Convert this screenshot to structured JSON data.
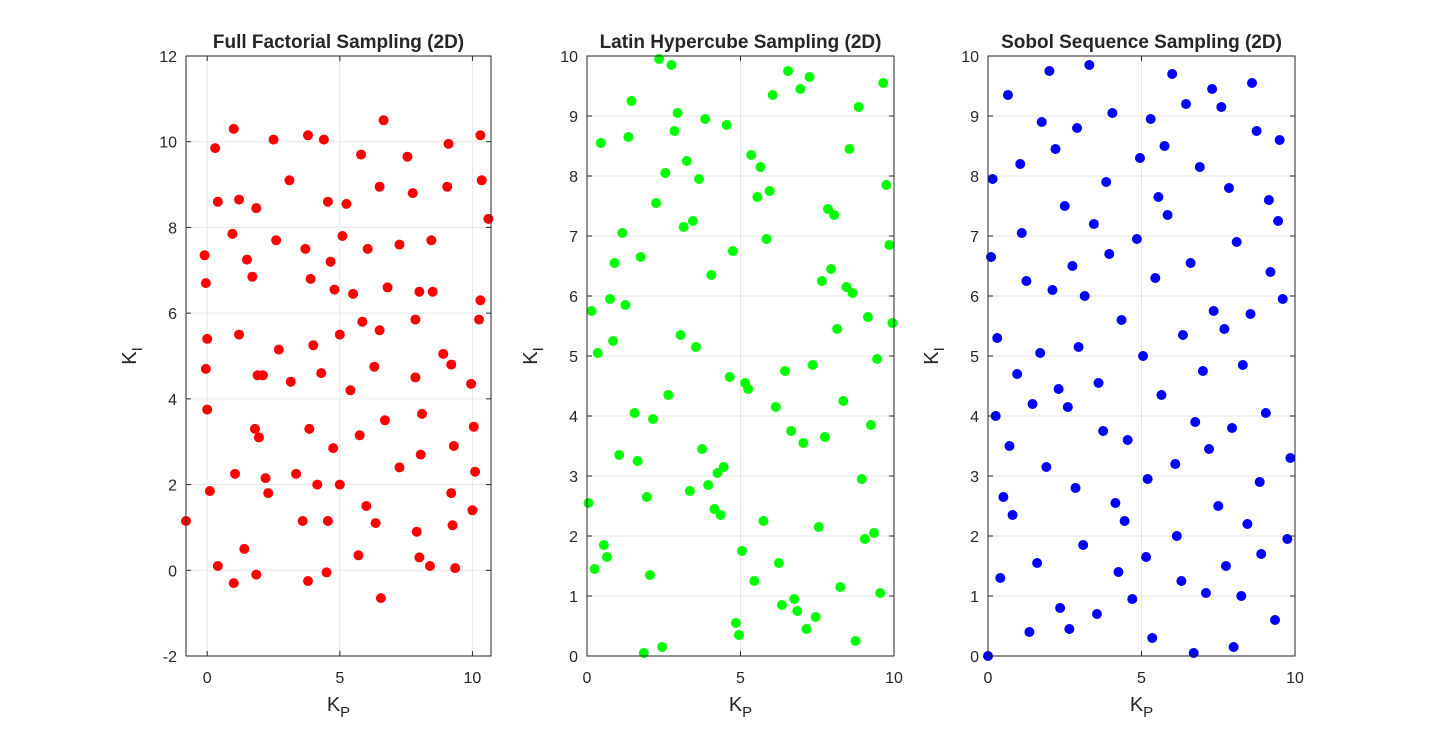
{
  "figure": {
    "background": "#ffffff"
  },
  "chart_data": [
    {
      "type": "scatter",
      "title": "Full Factorial Sampling (2D)",
      "xlabel": "K",
      "xlabel_sub": "P",
      "ylabel": "K",
      "ylabel_sub": "I",
      "xlim": [
        -0.8,
        10.7
      ],
      "ylim": [
        -2,
        12
      ],
      "xticks": [
        0,
        5,
        10
      ],
      "yticks": [
        -2,
        0,
        2,
        4,
        6,
        8,
        10,
        12
      ],
      "grid": true,
      "color": "#ff0000",
      "points": [
        [
          -0.8,
          1.15
        ],
        [
          -0.1,
          7.35
        ],
        [
          -0.05,
          6.7
        ],
        [
          0.0,
          5.4
        ],
        [
          -0.05,
          4.7
        ],
        [
          0.0,
          3.75
        ],
        [
          0.1,
          1.85
        ],
        [
          0.3,
          9.85
        ],
        [
          0.4,
          8.6
        ],
        [
          0.4,
          0.1
        ],
        [
          0.95,
          7.85
        ],
        [
          1.0,
          10.3
        ],
        [
          1.05,
          2.25
        ],
        [
          1.0,
          -0.3
        ],
        [
          1.2,
          8.65
        ],
        [
          1.2,
          5.5
        ],
        [
          1.4,
          0.5
        ],
        [
          1.5,
          7.25
        ],
        [
          1.7,
          6.85
        ],
        [
          1.8,
          3.3
        ],
        [
          1.85,
          8.45
        ],
        [
          1.9,
          4.55
        ],
        [
          1.85,
          -0.1
        ],
        [
          1.95,
          3.1
        ],
        [
          2.1,
          4.55
        ],
        [
          2.2,
          2.15
        ],
        [
          2.3,
          1.8
        ],
        [
          2.5,
          10.05
        ],
        [
          2.6,
          7.7
        ],
        [
          2.7,
          5.15
        ],
        [
          3.1,
          9.1
        ],
        [
          3.15,
          4.4
        ],
        [
          3.35,
          2.25
        ],
        [
          3.6,
          1.15
        ],
        [
          3.7,
          7.5
        ],
        [
          3.8,
          10.15
        ],
        [
          3.8,
          -0.25
        ],
        [
          3.85,
          3.3
        ],
        [
          3.9,
          6.8
        ],
        [
          4.0,
          5.25
        ],
        [
          4.15,
          2.0
        ],
        [
          4.3,
          4.6
        ],
        [
          4.4,
          10.05
        ],
        [
          4.5,
          -0.05
        ],
        [
          4.55,
          1.15
        ],
        [
          4.55,
          8.6
        ],
        [
          4.65,
          7.2
        ],
        [
          4.75,
          2.85
        ],
        [
          4.8,
          6.55
        ],
        [
          5.0,
          5.5
        ],
        [
          5.0,
          2.0
        ],
        [
          5.1,
          7.8
        ],
        [
          5.25,
          8.55
        ],
        [
          5.4,
          4.2
        ],
        [
          5.5,
          6.45
        ],
        [
          5.7,
          0.35
        ],
        [
          5.75,
          3.15
        ],
        [
          5.8,
          9.7
        ],
        [
          5.85,
          5.8
        ],
        [
          6.0,
          1.5
        ],
        [
          6.05,
          7.5
        ],
        [
          6.3,
          4.75
        ],
        [
          6.35,
          1.1
        ],
        [
          6.5,
          8.95
        ],
        [
          6.5,
          5.6
        ],
        [
          6.55,
          -0.65
        ],
        [
          6.65,
          10.5
        ],
        [
          6.7,
          3.5
        ],
        [
          6.8,
          6.6
        ],
        [
          7.25,
          7.6
        ],
        [
          7.25,
          2.4
        ],
        [
          7.55,
          9.65
        ],
        [
          7.75,
          8.8
        ],
        [
          7.85,
          4.5
        ],
        [
          7.85,
          5.85
        ],
        [
          7.9,
          0.9
        ],
        [
          8.0,
          6.5
        ],
        [
          8.0,
          0.3
        ],
        [
          8.05,
          2.7
        ],
        [
          8.1,
          3.65
        ],
        [
          8.4,
          0.1
        ],
        [
          8.45,
          7.7
        ],
        [
          8.5,
          6.5
        ],
        [
          8.9,
          5.05
        ],
        [
          9.05,
          8.95
        ],
        [
          9.1,
          9.95
        ],
        [
          9.2,
          1.8
        ],
        [
          9.2,
          4.8
        ],
        [
          9.25,
          1.05
        ],
        [
          9.3,
          2.9
        ],
        [
          9.35,
          0.05
        ],
        [
          9.95,
          4.35
        ],
        [
          10.0,
          1.4
        ],
        [
          10.05,
          3.35
        ],
        [
          10.1,
          2.3
        ],
        [
          10.25,
          5.85
        ],
        [
          10.3,
          10.15
        ],
        [
          10.3,
          6.3
        ],
        [
          10.35,
          9.1
        ],
        [
          10.6,
          8.2
        ]
      ]
    },
    {
      "type": "scatter",
      "title": "Latin Hypercube Sampling (2D)",
      "xlabel": "K",
      "xlabel_sub": "P",
      "ylabel": "K",
      "ylabel_sub": "I",
      "xlim": [
        0,
        10
      ],
      "ylim": [
        0,
        10
      ],
      "xticks": [
        0,
        5,
        10
      ],
      "yticks": [
        0,
        1,
        2,
        3,
        4,
        5,
        6,
        7,
        8,
        9,
        10
      ],
      "grid": true,
      "color": "#00ff00",
      "points": [
        [
          0.05,
          2.55
        ],
        [
          0.15,
          5.75
        ],
        [
          0.25,
          1.45
        ],
        [
          0.35,
          5.05
        ],
        [
          0.45,
          8.55
        ],
        [
          0.55,
          1.85
        ],
        [
          0.65,
          1.65
        ],
        [
          0.75,
          5.95
        ],
        [
          0.85,
          5.25
        ],
        [
          0.9,
          6.55
        ],
        [
          1.05,
          3.35
        ],
        [
          1.15,
          7.05
        ],
        [
          1.25,
          5.85
        ],
        [
          1.35,
          8.65
        ],
        [
          1.45,
          9.25
        ],
        [
          1.55,
          4.05
        ],
        [
          1.65,
          3.25
        ],
        [
          1.75,
          6.65
        ],
        [
          1.85,
          0.05
        ],
        [
          1.95,
          2.65
        ],
        [
          2.05,
          1.35
        ],
        [
          2.15,
          3.95
        ],
        [
          2.25,
          7.55
        ],
        [
          2.35,
          9.95
        ],
        [
          2.45,
          0.15
        ],
        [
          2.55,
          8.05
        ],
        [
          2.65,
          4.35
        ],
        [
          2.75,
          9.85
        ],
        [
          2.85,
          8.75
        ],
        [
          2.95,
          9.05
        ],
        [
          3.05,
          5.35
        ],
        [
          3.15,
          7.15
        ],
        [
          3.25,
          8.25
        ],
        [
          3.35,
          2.75
        ],
        [
          3.45,
          7.25
        ],
        [
          3.55,
          5.15
        ],
        [
          3.65,
          7.95
        ],
        [
          3.75,
          3.45
        ],
        [
          3.85,
          8.95
        ],
        [
          3.95,
          2.85
        ],
        [
          4.05,
          6.35
        ],
        [
          4.15,
          2.45
        ],
        [
          4.25,
          3.05
        ],
        [
          4.35,
          2.35
        ],
        [
          4.45,
          3.15
        ],
        [
          4.55,
          8.85
        ],
        [
          4.65,
          4.65
        ],
        [
          4.75,
          6.75
        ],
        [
          4.85,
          0.55
        ],
        [
          4.95,
          0.35
        ],
        [
          5.05,
          1.75
        ],
        [
          5.15,
          4.55
        ],
        [
          5.25,
          4.45
        ],
        [
          5.35,
          8.35
        ],
        [
          5.45,
          1.25
        ],
        [
          5.55,
          7.65
        ],
        [
          5.65,
          8.15
        ],
        [
          5.75,
          2.25
        ],
        [
          5.85,
          6.95
        ],
        [
          5.95,
          7.75
        ],
        [
          6.05,
          9.35
        ],
        [
          6.15,
          4.15
        ],
        [
          6.25,
          1.55
        ],
        [
          6.35,
          0.85
        ],
        [
          6.45,
          4.75
        ],
        [
          6.55,
          9.75
        ],
        [
          6.65,
          3.75
        ],
        [
          6.75,
          0.95
        ],
        [
          6.85,
          0.75
        ],
        [
          6.95,
          9.45
        ],
        [
          7.05,
          3.55
        ],
        [
          7.15,
          0.45
        ],
        [
          7.25,
          9.65
        ],
        [
          7.35,
          4.85
        ],
        [
          7.45,
          0.65
        ],
        [
          7.55,
          2.15
        ],
        [
          7.65,
          6.25
        ],
        [
          7.75,
          3.65
        ],
        [
          7.85,
          7.45
        ],
        [
          7.95,
          6.45
        ],
        [
          8.05,
          7.35
        ],
        [
          8.15,
          5.45
        ],
        [
          8.25,
          1.15
        ],
        [
          8.35,
          4.25
        ],
        [
          8.45,
          6.15
        ],
        [
          8.55,
          8.45
        ],
        [
          8.65,
          6.05
        ],
        [
          8.75,
          0.25
        ],
        [
          8.85,
          9.15
        ],
        [
          8.95,
          2.95
        ],
        [
          9.05,
          1.95
        ],
        [
          9.15,
          5.65
        ],
        [
          9.25,
          3.85
        ],
        [
          9.35,
          2.05
        ],
        [
          9.45,
          4.95
        ],
        [
          9.55,
          1.05
        ],
        [
          9.65,
          9.55
        ],
        [
          9.75,
          7.85
        ],
        [
          9.85,
          6.85
        ],
        [
          9.95,
          5.55
        ]
      ]
    },
    {
      "type": "scatter",
      "title": "Sobol Sequence Sampling (2D)",
      "xlabel": "K",
      "xlabel_sub": "P",
      "ylabel": "K",
      "ylabel_sub": "I",
      "xlim": [
        0,
        10
      ],
      "ylim": [
        0,
        10
      ],
      "xticks": [
        0,
        5,
        10
      ],
      "yticks": [
        0,
        1,
        2,
        3,
        4,
        5,
        6,
        7,
        8,
        9,
        10
      ],
      "grid": true,
      "color": "#0000ff",
      "points": [
        [
          0.0,
          0.0
        ],
        [
          0.1,
          6.65
        ],
        [
          0.15,
          7.95
        ],
        [
          0.25,
          4.0
        ],
        [
          0.3,
          5.3
        ],
        [
          0.4,
          1.3
        ],
        [
          0.5,
          2.65
        ],
        [
          0.65,
          9.35
        ],
        [
          0.7,
          3.5
        ],
        [
          0.8,
          2.35
        ],
        [
          0.95,
          4.7
        ],
        [
          1.05,
          8.2
        ],
        [
          1.1,
          7.05
        ],
        [
          1.25,
          6.25
        ],
        [
          1.35,
          0.4
        ],
        [
          1.45,
          4.2
        ],
        [
          1.6,
          1.55
        ],
        [
          1.7,
          5.05
        ],
        [
          1.75,
          8.9
        ],
        [
          1.9,
          3.15
        ],
        [
          2.0,
          9.75
        ],
        [
          2.1,
          6.1
        ],
        [
          2.2,
          8.45
        ],
        [
          2.3,
          4.45
        ],
        [
          2.35,
          0.8
        ],
        [
          2.5,
          7.5
        ],
        [
          2.6,
          4.15
        ],
        [
          2.65,
          0.45
        ],
        [
          2.75,
          6.5
        ],
        [
          2.85,
          2.8
        ],
        [
          2.9,
          8.8
        ],
        [
          2.95,
          5.15
        ],
        [
          3.1,
          1.85
        ],
        [
          3.15,
          6.0
        ],
        [
          3.3,
          9.85
        ],
        [
          3.45,
          7.2
        ],
        [
          3.55,
          0.7
        ],
        [
          3.6,
          4.55
        ],
        [
          3.75,
          3.75
        ],
        [
          3.85,
          7.9
        ],
        [
          3.95,
          6.7
        ],
        [
          4.05,
          9.05
        ],
        [
          4.15,
          2.55
        ],
        [
          4.25,
          1.4
        ],
        [
          4.35,
          5.6
        ],
        [
          4.45,
          2.25
        ],
        [
          4.55,
          3.6
        ],
        [
          4.7,
          0.95
        ],
        [
          4.85,
          6.95
        ],
        [
          4.95,
          8.3
        ],
        [
          5.05,
          5.0
        ],
        [
          5.15,
          1.65
        ],
        [
          5.2,
          2.95
        ],
        [
          5.3,
          8.95
        ],
        [
          5.35,
          0.3
        ],
        [
          5.45,
          6.3
        ],
        [
          5.55,
          7.65
        ],
        [
          5.65,
          4.35
        ],
        [
          5.75,
          8.5
        ],
        [
          5.85,
          7.35
        ],
        [
          6.0,
          9.7
        ],
        [
          6.1,
          3.2
        ],
        [
          6.15,
          2.0
        ],
        [
          6.3,
          1.25
        ],
        [
          6.35,
          5.35
        ],
        [
          6.45,
          9.2
        ],
        [
          6.6,
          6.55
        ],
        [
          6.7,
          0.05
        ],
        [
          6.75,
          3.9
        ],
        [
          6.9,
          8.15
        ],
        [
          7.0,
          4.75
        ],
        [
          7.1,
          1.05
        ],
        [
          7.2,
          3.45
        ],
        [
          7.3,
          9.45
        ],
        [
          7.35,
          5.75
        ],
        [
          7.5,
          2.5
        ],
        [
          7.6,
          9.15
        ],
        [
          7.7,
          5.45
        ],
        [
          7.75,
          1.5
        ],
        [
          7.85,
          7.8
        ],
        [
          7.95,
          3.8
        ],
        [
          8.0,
          0.15
        ],
        [
          8.1,
          6.9
        ],
        [
          8.25,
          1.0
        ],
        [
          8.3,
          4.85
        ],
        [
          8.45,
          2.2
        ],
        [
          8.55,
          5.7
        ],
        [
          8.6,
          9.55
        ],
        [
          8.75,
          8.75
        ],
        [
          8.85,
          2.9
        ],
        [
          8.9,
          1.7
        ],
        [
          9.05,
          4.05
        ],
        [
          9.15,
          7.6
        ],
        [
          9.2,
          6.4
        ],
        [
          9.35,
          0.6
        ],
        [
          9.45,
          7.25
        ],
        [
          9.5,
          8.6
        ],
        [
          9.6,
          5.95
        ],
        [
          9.75,
          1.95
        ],
        [
          9.85,
          3.3
        ]
      ]
    }
  ]
}
